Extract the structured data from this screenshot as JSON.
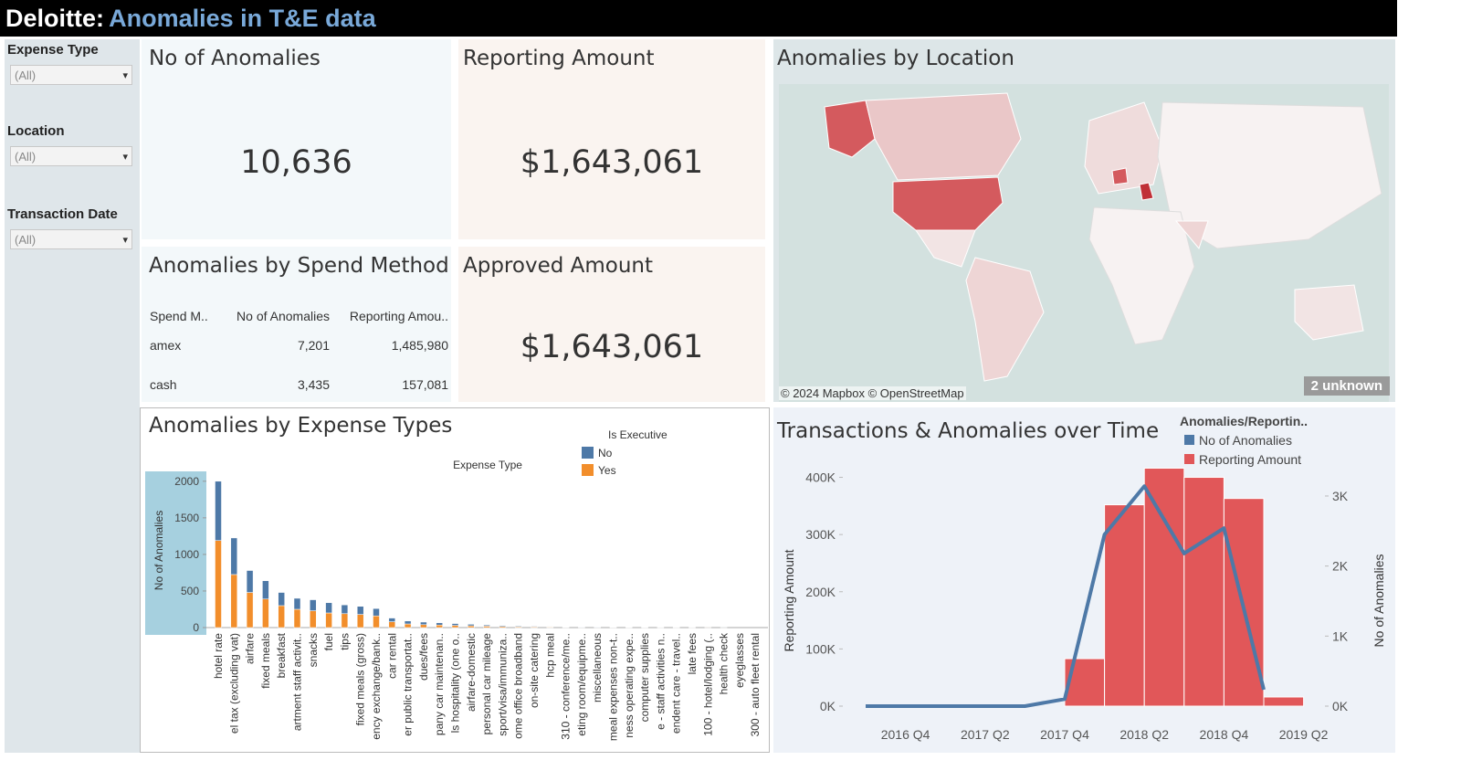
{
  "header": {
    "brand": "Deloitte:",
    "title": "Anomalies in T&E data"
  },
  "filters": [
    {
      "label": "Expense Type",
      "value": "(All)"
    },
    {
      "label": "Location",
      "value": "(All)"
    },
    {
      "label": "Transaction Date",
      "value": "(All)"
    }
  ],
  "kpis": [
    {
      "title": "No of Anomalies",
      "value": "10,636"
    },
    {
      "title": "Reporting Amount",
      "value": "$1,643,061"
    },
    {
      "title": "Approved Amount",
      "value": "$1,643,061"
    }
  ],
  "spend_table": {
    "title": "Anomalies by Spend Method",
    "columns": [
      "Spend M..",
      "No of Anomalies",
      "Reporting Amou.."
    ],
    "rows": [
      [
        "amex",
        "7,201",
        "1,485,980"
      ],
      [
        "cash",
        "3,435",
        "157,081"
      ]
    ]
  },
  "map": {
    "title": "Anomalies by Location",
    "attribution": "© 2024 Mapbox © OpenStreetMap",
    "unknown": "2 unknown"
  },
  "chart_data": [
    {
      "type": "bar",
      "stacked": true,
      "title": "Anomalies by Expense Types",
      "x_label": "Expense Type",
      "y_label": "No of Anomalies",
      "legend_title": "Is Executive",
      "categories": [
        "hotel rate",
        "el tax (excluding vat)",
        "airfare",
        "fixed meals",
        "breakfast",
        "artment staff activit..",
        "snacks",
        "fuel",
        "tips",
        "fixed meals (gross)",
        "ency exchange/bank..",
        "car rental",
        "er public transportat..",
        "dues/fees",
        "pany car maintenan..",
        "ls hospitality (one o..",
        "airfare-domestic",
        "personal car mileage",
        "sport/visa/immuniza..",
        "ome office broadband",
        "on-site catering",
        "hcp meal",
        "310 - conference/me..",
        "eting room/equipme..",
        "miscellaneous",
        "meal expenses non-t..",
        "ness operating expe..",
        "computer supplies",
        "e - staff activities n..",
        "endent care - travel..",
        "late fees",
        "100 - hotel/lodging (..",
        "health check",
        "eyeglasses",
        "300 - auto fleet rental"
      ],
      "series": [
        {
          "name": "No",
          "color": "#4e79a7",
          "values": [
            810,
            500,
            300,
            250,
            180,
            150,
            150,
            140,
            120,
            110,
            100,
            50,
            40,
            35,
            30,
            25,
            20,
            15,
            12,
            10,
            8,
            6,
            5,
            4,
            3,
            2,
            2,
            1,
            1,
            1,
            1,
            0,
            1,
            0,
            0
          ]
        },
        {
          "name": "Yes",
          "color": "#f28e2b",
          "values": [
            1190,
            725,
            480,
            390,
            300,
            250,
            230,
            200,
            190,
            180,
            160,
            80,
            50,
            40,
            35,
            30,
            25,
            20,
            15,
            12,
            10,
            8,
            6,
            5,
            4,
            3,
            2,
            2,
            1,
            1,
            1,
            1,
            0,
            0,
            0
          ]
        }
      ],
      "ylim": [
        0,
        2110
      ],
      "yticks": [
        0,
        500,
        1000,
        1500,
        2000
      ]
    },
    {
      "type": "combo",
      "title": "Transactions & Anomalies over Time",
      "legend_title": "Anomalies/Reportin..",
      "y_label": "Reporting Amount",
      "y2_label": "No of Anomalies",
      "categories": [
        null,
        "2016 Q4",
        null,
        "2017 Q2",
        null,
        "2017 Q4",
        null,
        "2018 Q2",
        null,
        "2018 Q4",
        null,
        "2019 Q2"
      ],
      "series": [
        {
          "name": "No of Anomalies",
          "type": "line",
          "axis": "y2",
          "color": "#4e79a7",
          "values": [
            0,
            0,
            0,
            0,
            0,
            100,
            2450,
            3140,
            2180,
            2540,
            235,
            null
          ]
        },
        {
          "name": "Reporting Amount",
          "type": "bar",
          "color": "#e15759",
          "values": [
            0,
            0,
            0,
            0,
            0,
            83000,
            352000,
            416000,
            400000,
            363000,
            16000,
            null
          ]
        }
      ],
      "ylim": [
        0,
        420000
      ],
      "yticks": [
        {
          "value": 0,
          "label": "0K"
        },
        {
          "value": 100000,
          "label": "100K"
        },
        {
          "value": 200000,
          "label": "200K"
        },
        {
          "value": 300000,
          "label": "300K"
        },
        {
          "value": 400000,
          "label": "400K"
        }
      ],
      "y2lim": [
        0,
        3430
      ],
      "y2ticks": [
        {
          "value": 0,
          "label": "0K"
        },
        {
          "value": 1000,
          "label": "1K"
        },
        {
          "value": 2000,
          "label": "2K"
        },
        {
          "value": 3000,
          "label": "3K"
        }
      ]
    }
  ]
}
